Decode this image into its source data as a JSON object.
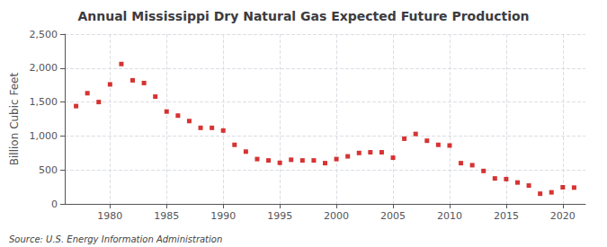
{
  "chart_data": {
    "type": "scatter",
    "title": "Annual Mississippi Dry Natural Gas Expected Future Production",
    "ylabel": "Billion Cubic Feet",
    "source": "Source: U.S. Energy Information Administration",
    "x": [
      1977,
      1978,
      1979,
      1980,
      1981,
      1982,
      1983,
      1984,
      1985,
      1986,
      1987,
      1988,
      1989,
      1990,
      1991,
      1992,
      1993,
      1994,
      1995,
      1996,
      1997,
      1998,
      1999,
      2000,
      2001,
      2002,
      2003,
      2004,
      2005,
      2006,
      2007,
      2008,
      2009,
      2010,
      2011,
      2012,
      2013,
      2014,
      2015,
      2016,
      2017,
      2018,
      2019,
      2020,
      2021
    ],
    "values": [
      1440,
      1630,
      1500,
      1760,
      2060,
      1820,
      1780,
      1580,
      1360,
      1300,
      1220,
      1120,
      1120,
      1080,
      870,
      770,
      660,
      640,
      605,
      650,
      640,
      640,
      600,
      660,
      700,
      750,
      760,
      760,
      680,
      960,
      1030,
      930,
      870,
      860,
      600,
      570,
      485,
      375,
      365,
      315,
      270,
      150,
      170,
      245,
      240
    ],
    "color": "#cc0000",
    "marker": "square",
    "xlim": [
      1976,
      2022
    ],
    "xticks": [
      1980,
      1985,
      1990,
      1995,
      2000,
      2005,
      2010,
      2015,
      2020
    ],
    "ylim": [
      0,
      2500
    ],
    "yticks": [
      0,
      500,
      {
        "value": 1000,
        "label": "1,000"
      },
      {
        "value": 1500,
        "label": "1,500"
      },
      {
        "value": 2000,
        "label": "2,000"
      },
      {
        "value": 2500,
        "label": "2,500"
      }
    ],
    "grid": true
  }
}
